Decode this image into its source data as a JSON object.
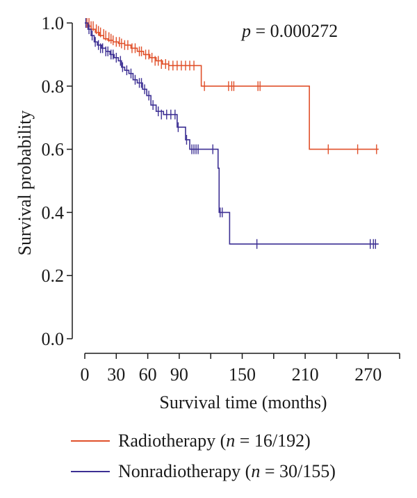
{
  "chart_data": {
    "type": "line",
    "subtype": "kaplan-meier",
    "annotation": {
      "p_symbol": "p",
      "p_rest": " = 0.000272"
    },
    "xlabel": "Survival time (months)",
    "ylabel": "Survival probability",
    "xlim": [
      0,
      300
    ],
    "ylim": [
      0,
      1
    ],
    "xticks": [
      0,
      30,
      60,
      90,
      150,
      210,
      270
    ],
    "xtick_labels": [
      "0",
      "30",
      "60",
      "90",
      "150",
      "210",
      "270"
    ],
    "yticks": [
      0,
      0.2,
      0.4,
      0.6,
      0.8,
      1.0
    ],
    "ytick_labels": [
      "0.0",
      "0.2",
      "0.4",
      "0.6",
      "0.8",
      "1.0"
    ],
    "grid": false,
    "legend_position": "bottom",
    "series": [
      {
        "name": "Radiotherapy",
        "legend_prefix": "Radiotherapy (",
        "legend_n_symbol": "n",
        "legend_suffix": " = 16/192)",
        "color": "#e0502a",
        "steps": [
          [
            0,
            1.0
          ],
          [
            3,
            0.99
          ],
          [
            6,
            0.98
          ],
          [
            10,
            0.97
          ],
          [
            14,
            0.96
          ],
          [
            18,
            0.95
          ],
          [
            22,
            0.945
          ],
          [
            27,
            0.94
          ],
          [
            32,
            0.935
          ],
          [
            38,
            0.93
          ],
          [
            44,
            0.92
          ],
          [
            50,
            0.91
          ],
          [
            56,
            0.9
          ],
          [
            62,
            0.89
          ],
          [
            68,
            0.88
          ],
          [
            74,
            0.87
          ],
          [
            80,
            0.865
          ],
          [
            111,
            0.8
          ],
          [
            214,
            0.6
          ],
          [
            280,
            0.6
          ]
        ],
        "censored": [
          [
            2,
            1.0
          ],
          [
            4,
            1.0
          ],
          [
            6,
            0.99
          ],
          [
            8,
            0.99
          ],
          [
            11,
            0.98
          ],
          [
            13,
            0.975
          ],
          [
            15,
            0.97
          ],
          [
            18,
            0.965
          ],
          [
            20,
            0.96
          ],
          [
            23,
            0.955
          ],
          [
            25,
            0.95
          ],
          [
            27,
            0.945
          ],
          [
            30,
            0.94
          ],
          [
            33,
            0.94
          ],
          [
            35,
            0.935
          ],
          [
            38,
            0.93
          ],
          [
            41,
            0.93
          ],
          [
            45,
            0.92
          ],
          [
            48,
            0.92
          ],
          [
            52,
            0.91
          ],
          [
            54,
            0.91
          ],
          [
            58,
            0.9
          ],
          [
            61,
            0.9
          ],
          [
            64,
            0.89
          ],
          [
            67,
            0.88
          ],
          [
            70,
            0.88
          ],
          [
            73,
            0.87
          ],
          [
            77,
            0.87
          ],
          [
            80,
            0.865
          ],
          [
            84,
            0.865
          ],
          [
            88,
            0.865
          ],
          [
            92,
            0.865
          ],
          [
            96,
            0.865
          ],
          [
            100,
            0.865
          ],
          [
            104,
            0.865
          ],
          [
            114,
            0.8
          ],
          [
            137,
            0.8
          ],
          [
            140,
            0.8
          ],
          [
            142,
            0.8
          ],
          [
            165,
            0.8
          ],
          [
            167,
            0.8
          ],
          [
            232,
            0.6
          ],
          [
            260,
            0.6
          ],
          [
            278,
            0.6
          ]
        ]
      },
      {
        "name": "Nonradiotherapy",
        "legend_prefix": "Nonradiotherapy (",
        "legend_n_symbol": "n",
        "legend_suffix": " = 30/155)",
        "color": "#3c2f93",
        "steps": [
          [
            0,
            1.0
          ],
          [
            3,
            0.98
          ],
          [
            6,
            0.96
          ],
          [
            9,
            0.94
          ],
          [
            12,
            0.93
          ],
          [
            16,
            0.92
          ],
          [
            20,
            0.91
          ],
          [
            24,
            0.9
          ],
          [
            28,
            0.89
          ],
          [
            32,
            0.88
          ],
          [
            35,
            0.86
          ],
          [
            38,
            0.85
          ],
          [
            42,
            0.84
          ],
          [
            46,
            0.82
          ],
          [
            50,
            0.81
          ],
          [
            55,
            0.79
          ],
          [
            59,
            0.77
          ],
          [
            63,
            0.74
          ],
          [
            68,
            0.72
          ],
          [
            75,
            0.71
          ],
          [
            88,
            0.67
          ],
          [
            96,
            0.63
          ],
          [
            100,
            0.6
          ],
          [
            127,
            0.54
          ],
          [
            128,
            0.4
          ],
          [
            138,
            0.3
          ],
          [
            280,
            0.3
          ]
        ],
        "censored": [
          [
            1,
            1.0
          ],
          [
            4,
            0.98
          ],
          [
            7,
            0.96
          ],
          [
            10,
            0.94
          ],
          [
            13,
            0.93
          ],
          [
            15,
            0.92
          ],
          [
            17,
            0.92
          ],
          [
            20,
            0.91
          ],
          [
            22,
            0.91
          ],
          [
            25,
            0.9
          ],
          [
            27,
            0.9
          ],
          [
            30,
            0.89
          ],
          [
            34,
            0.88
          ],
          [
            36,
            0.86
          ],
          [
            40,
            0.85
          ],
          [
            44,
            0.84
          ],
          [
            48,
            0.82
          ],
          [
            52,
            0.81
          ],
          [
            54,
            0.81
          ],
          [
            57,
            0.79
          ],
          [
            61,
            0.77
          ],
          [
            65,
            0.74
          ],
          [
            70,
            0.72
          ],
          [
            73,
            0.71
          ],
          [
            78,
            0.71
          ],
          [
            82,
            0.71
          ],
          [
            86,
            0.71
          ],
          [
            89,
            0.67
          ],
          [
            97,
            0.63
          ],
          [
            102,
            0.6
          ],
          [
            104,
            0.6
          ],
          [
            106,
            0.6
          ],
          [
            108,
            0.6
          ],
          [
            122,
            0.6
          ],
          [
            129,
            0.4
          ],
          [
            131,
            0.4
          ],
          [
            164,
            0.3
          ],
          [
            272,
            0.3
          ],
          [
            275,
            0.3
          ],
          [
            277,
            0.3
          ]
        ]
      }
    ]
  }
}
